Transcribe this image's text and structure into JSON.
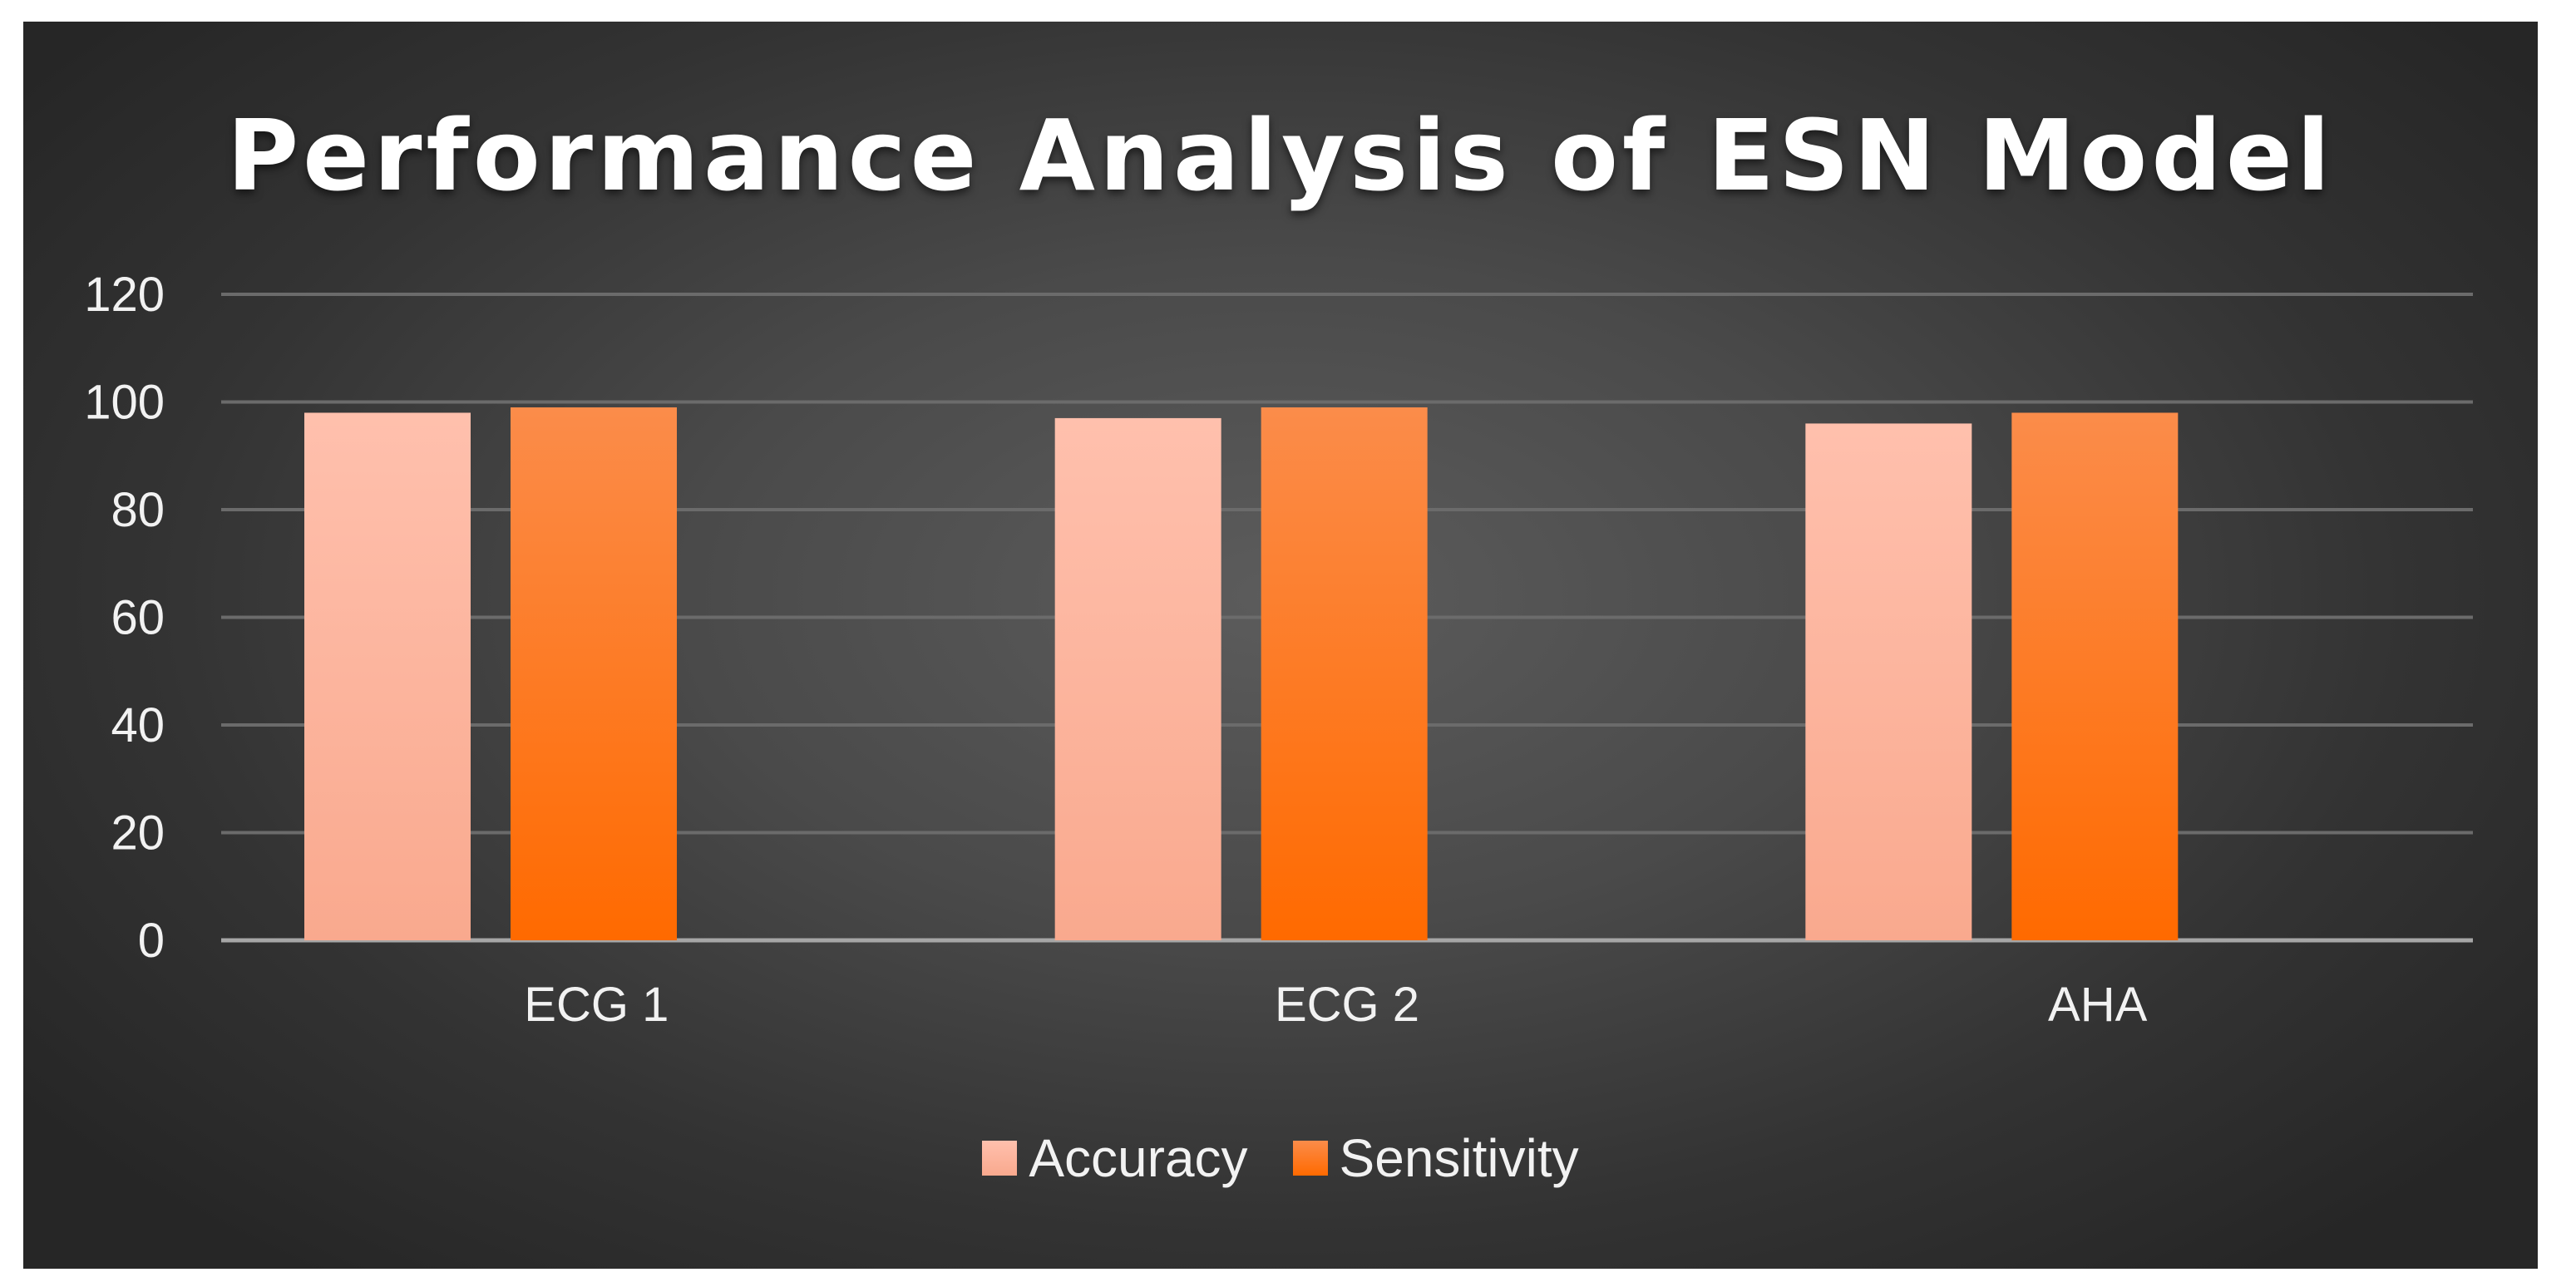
{
  "chart_data": {
    "type": "bar",
    "title": "Performance Analysis of ESN Model",
    "categories": [
      "ECG 1",
      "ECG 2",
      "AHA"
    ],
    "series": [
      {
        "name": "Accuracy",
        "values": [
          98,
          97,
          96
        ],
        "color_top": "#ffc0ad",
        "color_bottom": "#f9a98e"
      },
      {
        "name": "Sensitivity",
        "values": [
          99,
          99,
          98
        ],
        "color_top": "#fb8c4a",
        "color_bottom": "#ff6a00"
      }
    ],
    "ylim": [
      0,
      120
    ],
    "yticks": [
      0,
      20,
      40,
      60,
      80,
      100,
      120
    ],
    "xlabel": "",
    "ylabel": "",
    "grid": true,
    "legend_position": "bottom"
  }
}
